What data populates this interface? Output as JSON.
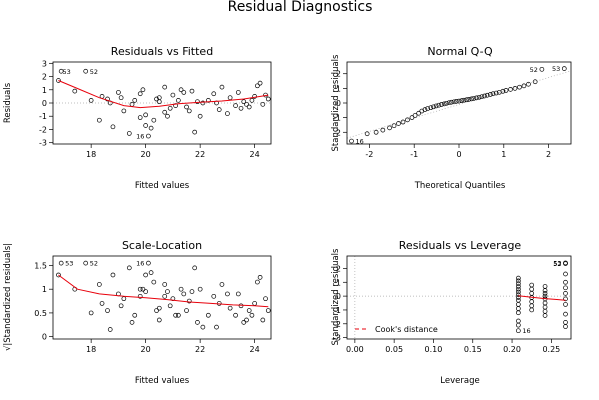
{
  "figure": {
    "title": "Residual Diagnostics"
  },
  "chart_data": [
    {
      "id": "rvf",
      "type": "scatter",
      "title": "Residuals vs Fitted",
      "xlabel": "Fitted values",
      "ylabel": "Residuals",
      "xlim": [
        16.6,
        24.6
      ],
      "ylim": [
        -3.1,
        3.1
      ],
      "xticks": [
        18,
        20,
        22,
        24
      ],
      "yticks": [
        -3,
        -2,
        -1,
        0,
        1,
        2,
        3
      ],
      "points": [
        [
          16.8,
          1.7
        ],
        [
          16.9,
          2.4
        ],
        [
          17.4,
          0.9
        ],
        [
          17.8,
          2.4
        ],
        [
          18.0,
          0.2
        ],
        [
          18.3,
          -1.3
        ],
        [
          18.4,
          0.5
        ],
        [
          18.6,
          0.3
        ],
        [
          18.7,
          0.0
        ],
        [
          18.8,
          -1.8
        ],
        [
          19.0,
          0.8
        ],
        [
          19.1,
          0.4
        ],
        [
          19.2,
          -0.6
        ],
        [
          19.4,
          -2.3
        ],
        [
          19.5,
          -0.1
        ],
        [
          19.6,
          0.2
        ],
        [
          19.8,
          0.7
        ],
        [
          19.8,
          -1.1
        ],
        [
          19.9,
          1.0
        ],
        [
          20.0,
          -0.9
        ],
        [
          20.0,
          -1.7
        ],
        [
          20.1,
          -2.5
        ],
        [
          20.2,
          -1.9
        ],
        [
          20.3,
          -1.3
        ],
        [
          20.4,
          0.3
        ],
        [
          20.5,
          0.1
        ],
        [
          20.5,
          0.4
        ],
        [
          20.7,
          1.2
        ],
        [
          20.7,
          -0.7
        ],
        [
          20.8,
          -1.0
        ],
        [
          20.9,
          -0.4
        ],
        [
          21.0,
          0.6
        ],
        [
          21.1,
          -0.2
        ],
        [
          21.2,
          0.2
        ],
        [
          21.3,
          1.0
        ],
        [
          21.4,
          0.8
        ],
        [
          21.5,
          -0.3
        ],
        [
          21.6,
          -0.6
        ],
        [
          21.7,
          0.9
        ],
        [
          21.8,
          -2.2
        ],
        [
          21.9,
          0.1
        ],
        [
          22.0,
          -1.0
        ],
        [
          22.1,
          0.0
        ],
        [
          22.3,
          0.2
        ],
        [
          22.5,
          0.7
        ],
        [
          22.6,
          0.0
        ],
        [
          22.7,
          -0.5
        ],
        [
          22.8,
          1.2
        ],
        [
          23.0,
          -0.8
        ],
        [
          23.1,
          0.4
        ],
        [
          23.3,
          -0.2
        ],
        [
          23.4,
          0.8
        ],
        [
          23.5,
          -0.4
        ],
        [
          23.6,
          0.1
        ],
        [
          23.7,
          -0.1
        ],
        [
          23.8,
          -0.3
        ],
        [
          23.9,
          0.2
        ],
        [
          24.0,
          0.5
        ],
        [
          24.1,
          1.3
        ],
        [
          24.2,
          1.5
        ],
        [
          24.3,
          -0.1
        ],
        [
          24.4,
          0.6
        ],
        [
          24.5,
          0.3
        ]
      ],
      "smooth": [
        [
          16.8,
          1.7
        ],
        [
          17.5,
          1.1
        ],
        [
          18.3,
          0.4
        ],
        [
          19.2,
          -0.2
        ],
        [
          19.8,
          -0.35
        ],
        [
          20.5,
          -0.25
        ],
        [
          21.2,
          -0.05
        ],
        [
          22.0,
          0.05
        ],
        [
          22.8,
          0.15
        ],
        [
          23.6,
          0.3
        ],
        [
          24.5,
          0.6
        ]
      ],
      "labels": [
        {
          "text": "53",
          "x": 16.8,
          "y": 2.4,
          "dir": "r"
        },
        {
          "text": "52",
          "x": 17.8,
          "y": 2.4,
          "dir": "r"
        },
        {
          "text": "16",
          "x": 20.1,
          "y": -2.5,
          "dir": "l"
        }
      ]
    },
    {
      "id": "qq",
      "type": "scatter",
      "title": "Normal Q-Q",
      "xlabel": "Theoretical Quantiles",
      "ylabel": "Standardized residuals",
      "xlim": [
        -2.5,
        2.5
      ],
      "ylim": [
        -2.8,
        2.8
      ],
      "xticks": [
        -2,
        -1,
        0,
        1,
        2
      ],
      "yticks": [
        -2,
        -1,
        0,
        1,
        2
      ],
      "points": [
        [
          -2.4,
          -2.6
        ],
        [
          -2.05,
          -2.1
        ],
        [
          -1.85,
          -2.0
        ],
        [
          -1.7,
          -1.85
        ],
        [
          -1.55,
          -1.7
        ],
        [
          -1.45,
          -1.55
        ],
        [
          -1.35,
          -1.4
        ],
        [
          -1.25,
          -1.3
        ],
        [
          -1.15,
          -1.15
        ],
        [
          -1.05,
          -1.0
        ],
        [
          -0.98,
          -0.85
        ],
        [
          -0.9,
          -0.7
        ],
        [
          -0.83,
          -0.55
        ],
        [
          -0.76,
          -0.45
        ],
        [
          -0.7,
          -0.38
        ],
        [
          -0.63,
          -0.32
        ],
        [
          -0.57,
          -0.26
        ],
        [
          -0.51,
          -0.2
        ],
        [
          -0.45,
          -0.15
        ],
        [
          -0.39,
          -0.1
        ],
        [
          -0.33,
          -0.06
        ],
        [
          -0.28,
          -0.02
        ],
        [
          -0.22,
          0.02
        ],
        [
          -0.17,
          0.05
        ],
        [
          -0.11,
          0.08
        ],
        [
          -0.06,
          0.11
        ],
        [
          0.0,
          0.13
        ],
        [
          0.06,
          0.16
        ],
        [
          0.11,
          0.19
        ],
        [
          0.17,
          0.22
        ],
        [
          0.22,
          0.25
        ],
        [
          0.28,
          0.28
        ],
        [
          0.33,
          0.31
        ],
        [
          0.39,
          0.35
        ],
        [
          0.45,
          0.39
        ],
        [
          0.51,
          0.43
        ],
        [
          0.57,
          0.48
        ],
        [
          0.63,
          0.53
        ],
        [
          0.7,
          0.58
        ],
        [
          0.76,
          0.63
        ],
        [
          0.83,
          0.68
        ],
        [
          0.9,
          0.73
        ],
        [
          0.98,
          0.8
        ],
        [
          1.05,
          0.86
        ],
        [
          1.15,
          0.93
        ],
        [
          1.25,
          1.0
        ],
        [
          1.35,
          1.08
        ],
        [
          1.45,
          1.17
        ],
        [
          1.55,
          1.28
        ],
        [
          1.7,
          1.45
        ],
        [
          1.85,
          2.3
        ],
        [
          2.35,
          2.35
        ]
      ],
      "qqline": [
        [
          -2.5,
          -2.4
        ],
        [
          2.5,
          2.2
        ]
      ],
      "labels": [
        {
          "text": "53",
          "x": 2.35,
          "y": 2.35,
          "dir": "l"
        },
        {
          "text": "52",
          "x": 1.85,
          "y": 2.3,
          "dir": "l"
        },
        {
          "text": "16",
          "x": -2.4,
          "y": -2.6,
          "dir": "r"
        }
      ]
    },
    {
      "id": "sl",
      "type": "scatter",
      "title": "Scale-Location",
      "xlabel": "Fitted values",
      "ylabel": "√|Standardized residuals|",
      "xlim": [
        16.6,
        24.6
      ],
      "ylim": [
        -0.05,
        1.7
      ],
      "xticks": [
        18,
        20,
        22,
        24
      ],
      "yticks": [
        0.0,
        0.5,
        1.0,
        1.5
      ],
      "points": [
        [
          16.8,
          1.3
        ],
        [
          16.9,
          1.55
        ],
        [
          17.4,
          1.0
        ],
        [
          17.8,
          1.55
        ],
        [
          18.0,
          0.5
        ],
        [
          18.3,
          1.1
        ],
        [
          18.4,
          0.7
        ],
        [
          18.6,
          0.55
        ],
        [
          18.7,
          0.15
        ],
        [
          18.8,
          1.3
        ],
        [
          19.0,
          0.9
        ],
        [
          19.1,
          0.65
        ],
        [
          19.2,
          0.8
        ],
        [
          19.4,
          1.45
        ],
        [
          19.5,
          0.3
        ],
        [
          19.6,
          0.45
        ],
        [
          19.8,
          0.85
        ],
        [
          19.8,
          1.0
        ],
        [
          19.9,
          1.0
        ],
        [
          20.0,
          0.95
        ],
        [
          20.0,
          1.3
        ],
        [
          20.1,
          1.55
        ],
        [
          20.2,
          1.35
        ],
        [
          20.3,
          1.15
        ],
        [
          20.4,
          0.55
        ],
        [
          20.5,
          0.35
        ],
        [
          20.5,
          0.6
        ],
        [
          20.7,
          1.1
        ],
        [
          20.7,
          0.85
        ],
        [
          20.8,
          0.95
        ],
        [
          20.9,
          0.65
        ],
        [
          21.0,
          0.8
        ],
        [
          21.1,
          0.45
        ],
        [
          21.2,
          0.45
        ],
        [
          21.3,
          1.0
        ],
        [
          21.4,
          0.9
        ],
        [
          21.5,
          0.55
        ],
        [
          21.6,
          0.75
        ],
        [
          21.7,
          0.95
        ],
        [
          21.8,
          1.45
        ],
        [
          21.9,
          0.3
        ],
        [
          22.0,
          1.0
        ],
        [
          22.1,
          0.2
        ],
        [
          22.3,
          0.45
        ],
        [
          22.5,
          0.85
        ],
        [
          22.6,
          0.2
        ],
        [
          22.7,
          0.7
        ],
        [
          22.8,
          1.1
        ],
        [
          23.0,
          0.9
        ],
        [
          23.1,
          0.6
        ],
        [
          23.3,
          0.45
        ],
        [
          23.4,
          0.9
        ],
        [
          23.5,
          0.65
        ],
        [
          23.6,
          0.3
        ],
        [
          23.7,
          0.35
        ],
        [
          23.8,
          0.55
        ],
        [
          23.9,
          0.45
        ],
        [
          24.0,
          0.7
        ],
        [
          24.1,
          1.15
        ],
        [
          24.2,
          1.25
        ],
        [
          24.3,
          0.35
        ],
        [
          24.4,
          0.8
        ],
        [
          24.5,
          0.55
        ]
      ],
      "smooth": [
        [
          16.8,
          1.3
        ],
        [
          17.5,
          1.0
        ],
        [
          18.3,
          0.9
        ],
        [
          19.2,
          0.85
        ],
        [
          20.0,
          0.82
        ],
        [
          20.8,
          0.78
        ],
        [
          21.6,
          0.73
        ],
        [
          22.4,
          0.7
        ],
        [
          23.2,
          0.67
        ],
        [
          24.0,
          0.65
        ],
        [
          24.5,
          0.63
        ]
      ],
      "labels": [
        {
          "text": "53",
          "x": 16.9,
          "y": 1.55,
          "dir": "r"
        },
        {
          "text": "52",
          "x": 17.8,
          "y": 1.55,
          "dir": "r"
        },
        {
          "text": "16",
          "x": 20.1,
          "y": 1.55,
          "dir": "l"
        }
      ]
    },
    {
      "id": "rvl",
      "type": "scatter",
      "title": "Residuals vs Leverage",
      "xlabel": "Leverage",
      "ylabel": "Standardized residuals",
      "xlim": [
        -0.01,
        0.275
      ],
      "ylim": [
        -3.1,
        2.9
      ],
      "xticks": [
        0.0,
        0.05,
        0.1,
        0.15,
        0.2,
        0.25
      ],
      "xticklabels": [
        "0.00",
        "0.05",
        "0.10",
        "0.15",
        "0.20",
        "0.25"
      ],
      "yticks": [
        -3,
        -2,
        -1,
        0,
        1,
        2
      ],
      "points": [
        [
          0.208,
          1.3
        ],
        [
          0.208,
          1.1
        ],
        [
          0.208,
          0.9
        ],
        [
          0.208,
          0.7
        ],
        [
          0.208,
          0.5
        ],
        [
          0.208,
          0.3
        ],
        [
          0.208,
          0.1
        ],
        [
          0.208,
          -0.1
        ],
        [
          0.208,
          -0.3
        ],
        [
          0.208,
          -0.6
        ],
        [
          0.208,
          -0.9
        ],
        [
          0.208,
          -1.2
        ],
        [
          0.208,
          -1.8
        ],
        [
          0.208,
          -2.1
        ],
        [
          0.208,
          -2.5
        ],
        [
          0.225,
          0.8
        ],
        [
          0.225,
          0.5
        ],
        [
          0.225,
          0.2
        ],
        [
          0.225,
          -0.1
        ],
        [
          0.225,
          -0.4
        ],
        [
          0.225,
          -0.7
        ],
        [
          0.225,
          -1.0
        ],
        [
          0.242,
          0.7
        ],
        [
          0.242,
          0.4
        ],
        [
          0.242,
          0.2
        ],
        [
          0.242,
          0.0
        ],
        [
          0.242,
          -0.2
        ],
        [
          0.242,
          -0.5
        ],
        [
          0.242,
          -0.8
        ],
        [
          0.242,
          -1.1
        ],
        [
          0.242,
          -1.4
        ],
        [
          0.268,
          2.4
        ],
        [
          0.268,
          2.35
        ],
        [
          0.268,
          1.6
        ],
        [
          0.268,
          1.0
        ],
        [
          0.268,
          0.6
        ],
        [
          0.268,
          0.2
        ],
        [
          0.268,
          -0.2
        ],
        [
          0.268,
          -0.6
        ],
        [
          0.268,
          -1.3
        ],
        [
          0.268,
          -1.9
        ],
        [
          0.268,
          -2.2
        ]
      ],
      "smooth": [
        [
          0.208,
          0.02
        ],
        [
          0.225,
          -0.08
        ],
        [
          0.242,
          -0.18
        ],
        [
          0.255,
          -0.24
        ],
        [
          0.268,
          -0.3
        ]
      ],
      "legend": {
        "label": "Cook's distance",
        "position": "bottom-left"
      },
      "labels": [
        {
          "text": "53",
          "x": 0.268,
          "y": 2.4,
          "dir": "l"
        },
        {
          "text": "52",
          "x": 0.268,
          "y": 2.35,
          "dir": "l"
        },
        {
          "text": "16",
          "x": 0.208,
          "y": -2.5,
          "dir": "r"
        }
      ]
    }
  ]
}
